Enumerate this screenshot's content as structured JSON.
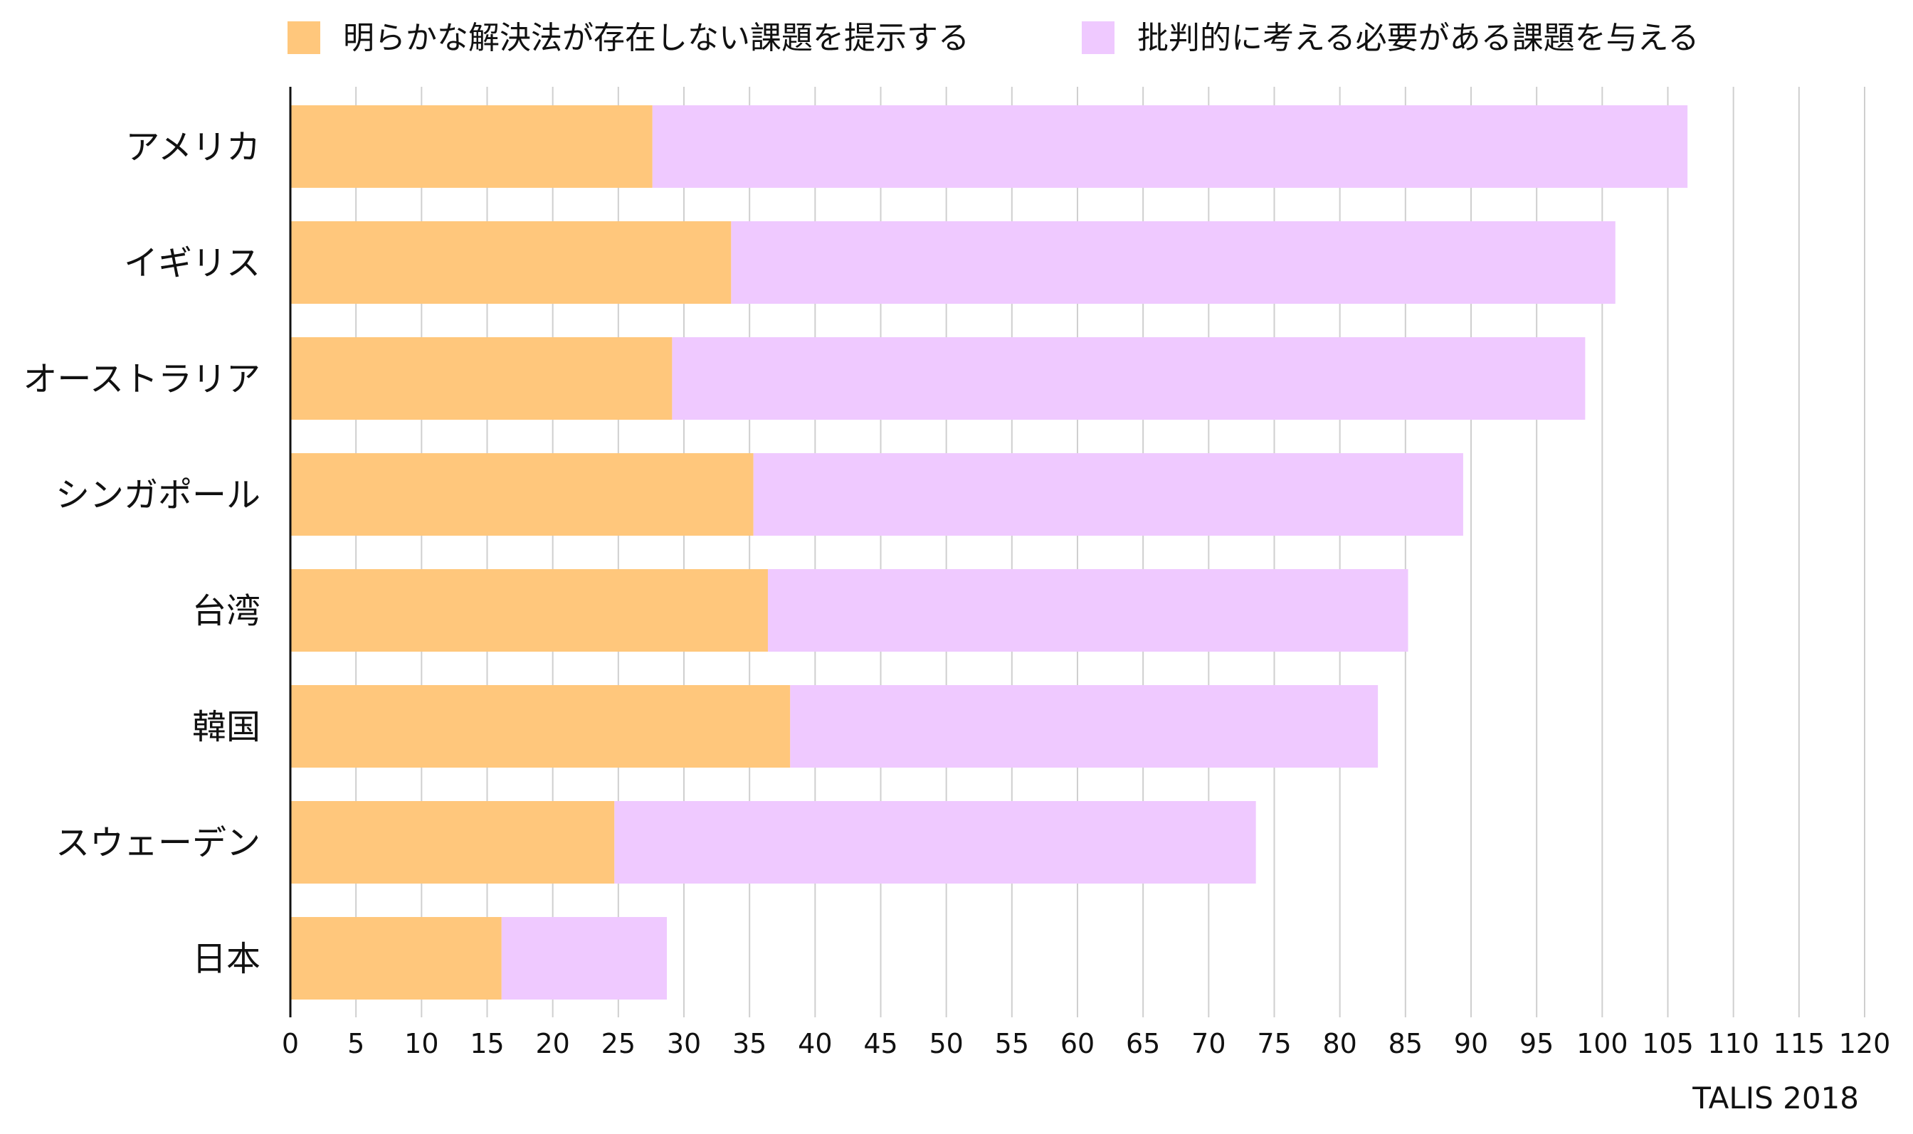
{
  "chart_data": {
    "type": "bar",
    "orientation": "horizontal",
    "stacked": true,
    "title": "",
    "xlabel": "",
    "ylabel": "",
    "categories": [
      "アメリカ",
      "イギリス",
      "オーストラリア",
      "シンガポール",
      "台湾",
      "韓国",
      "スウェーデン",
      "日本"
    ],
    "series": [
      {
        "name": "明らかな解決法が存在しない課題を提示する",
        "color": "#FFC77C",
        "values": [
          27.6,
          33.6,
          29.1,
          35.3,
          36.4,
          38.1,
          24.7,
          16.1
        ]
      },
      {
        "name": "批判的に考える必要がある課題を与える",
        "color": "#EFC9FF",
        "values": [
          78.9,
          67.4,
          69.6,
          54.1,
          48.8,
          44.8,
          48.9,
          12.6
        ]
      }
    ],
    "xlim": [
      0,
      120
    ],
    "xticks": [
      "0",
      "5",
      "10",
      "15",
      "20",
      "25",
      "30",
      "35",
      "40",
      "45",
      "50",
      "55",
      "60",
      "65",
      "70",
      "75",
      "80",
      "85",
      "90",
      "95",
      "100",
      "105",
      "110",
      "115",
      "120"
    ],
    "grid": "vertical",
    "legend_position": "top",
    "source_note": "TALIS 2018"
  }
}
